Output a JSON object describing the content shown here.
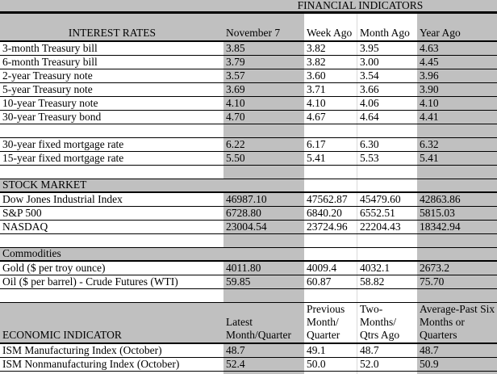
{
  "title": "FINANCIAL INDICATORS",
  "colors": {
    "shaded_cell": "#c0c0c0",
    "gridline": "#d9d9d9",
    "rule": "#000000"
  },
  "rows": [
    {
      "type": "header",
      "label": "INTEREST RATES",
      "values": [
        "November 7",
        "Week Ago",
        "Month Ago",
        "Year Ago"
      ]
    },
    {
      "type": "data",
      "label": "3-month Treasury bill",
      "values": [
        "3.85",
        "3.82",
        "3.95",
        "4.63"
      ]
    },
    {
      "type": "data",
      "label": "6-month Treasury bill",
      "values": [
        "3.79",
        "3.82",
        "3.00",
        "4.45"
      ]
    },
    {
      "type": "data",
      "label": "2-year Treasury note",
      "values": [
        "3.57",
        "3.60",
        "3.54",
        "3.96"
      ]
    },
    {
      "type": "data",
      "label": "5-year Treasury note",
      "values": [
        "3.69",
        "3.71",
        "3.66",
        "3.90"
      ]
    },
    {
      "type": "data",
      "label": "10-year Treasury note",
      "values": [
        "4.10",
        "4.10",
        "4.06",
        "4.10"
      ]
    },
    {
      "type": "data",
      "label": "30-year Treasury bond",
      "values": [
        "4.70",
        "4.67",
        "4.64",
        "4.41"
      ]
    },
    {
      "type": "blank"
    },
    {
      "type": "data",
      "label": "30-year fixed mortgage rate",
      "values": [
        "6.22",
        "6.17",
        "6.30",
        "6.32"
      ]
    },
    {
      "type": "data",
      "label": "15-year fixed mortgage rate",
      "values": [
        "5.50",
        "5.41",
        "5.53",
        "5.41"
      ]
    },
    {
      "type": "blank"
    },
    {
      "type": "section",
      "label": "STOCK MARKET"
    },
    {
      "type": "data",
      "label": "Dow Jones Industrial Index",
      "values": [
        "46987.10",
        "47562.87",
        "45479.60",
        "42863.86"
      ]
    },
    {
      "type": "data",
      "label": "S&P 500",
      "values": [
        "6728.80",
        "6840.20",
        "6552.51",
        "5815.03"
      ]
    },
    {
      "type": "data",
      "label": "NASDAQ",
      "values": [
        "23004.54",
        "23724.96",
        "22204.43",
        "18342.94"
      ]
    },
    {
      "type": "blank"
    },
    {
      "type": "section",
      "label": "Commodities"
    },
    {
      "type": "data",
      "label": "Gold ($ per troy ounce)",
      "values": [
        "4011.80",
        "4009.4",
        "4032.1",
        "2673.2"
      ]
    },
    {
      "type": "data",
      "label": "Oil ($ per barrel) - Crude Futures (WTI)",
      "values": [
        "59.85",
        "60.87",
        "58.82",
        "75.70"
      ]
    },
    {
      "type": "blank"
    },
    {
      "type": "econ-header",
      "label": "ECONOMIC INDICATOR",
      "values": [
        [
          "Latest",
          "Month/Quarter"
        ],
        [
          "Previous",
          "Month/",
          "Quarter"
        ],
        [
          "Two-",
          "Months/",
          "Qtrs Ago"
        ],
        [
          "Average-Past Six",
          "Months or",
          "Quarters"
        ]
      ]
    },
    {
      "type": "data",
      "label": "ISM Manufacturing Index (October)",
      "values": [
        "48.7",
        "49.1",
        "48.7",
        "48.7"
      ]
    },
    {
      "type": "data",
      "label": "ISM Nonmanufacturing Index (October)",
      "values": [
        "52.4",
        "50.0",
        "52.0",
        "50.9"
      ]
    },
    {
      "type": "strip"
    }
  ]
}
